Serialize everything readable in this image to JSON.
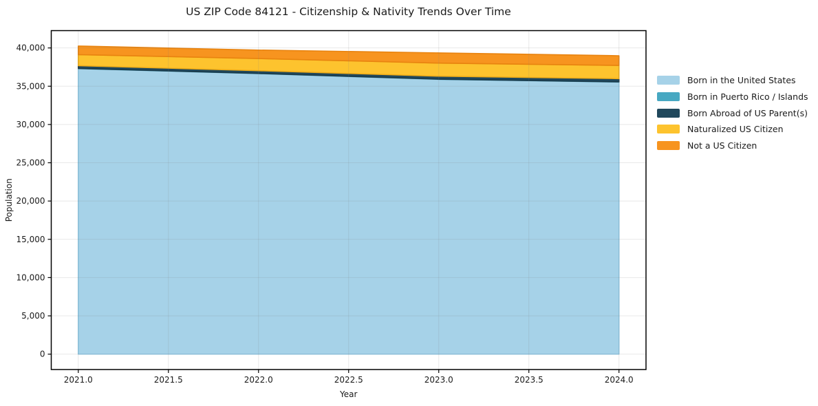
{
  "title": "US ZIP Code 84121 - Citizenship & Nativity Trends Over Time",
  "chart_data": {
    "type": "area",
    "stacked": true,
    "title": "US ZIP Code 84121 - Citizenship & Nativity Trends Over Time",
    "xlabel": "Year",
    "ylabel": "Population",
    "x": [
      2021,
      2022,
      2023,
      2024
    ],
    "series": [
      {
        "name": "Born in the United States",
        "color": "#a6d2e8",
        "edge_color": "#8ec8e4",
        "values": [
          37300,
          36650,
          35900,
          35550
        ]
      },
      {
        "name": "Born in Puerto Rico / Islands",
        "color": "#47a8c2",
        "edge_color": "#3d93ab",
        "values": [
          20,
          20,
          20,
          20
        ]
      },
      {
        "name": "Born Abroad of US Parent(s)",
        "color": "#20485c",
        "edge_color": "#1a3a4a",
        "values": [
          360,
          360,
          390,
          420
        ]
      },
      {
        "name": "Naturalized US Citizen",
        "color": "#fdc32e",
        "edge_color": "#f0ad18",
        "values": [
          1440,
          1590,
          1710,
          1730
        ]
      },
      {
        "name": "Not a US Citizen",
        "color": "#f7941f",
        "edge_color": "#e8830f",
        "values": [
          1130,
          1100,
          1330,
          1260
        ]
      }
    ],
    "totals": [
      40250,
      39720,
      39350,
      38980
    ],
    "xlim": [
      2020.85,
      2024.15
    ],
    "ylim": [
      -2012,
      42262
    ],
    "xticks": [
      2021.0,
      2021.5,
      2022.0,
      2022.5,
      2023.0,
      2023.5,
      2024.0
    ],
    "xtick_labels": [
      "2021.0",
      "2021.5",
      "2022.0",
      "2022.5",
      "2023.0",
      "2023.5",
      "2024.0"
    ],
    "yticks": [
      0,
      5000,
      10000,
      15000,
      20000,
      25000,
      30000,
      35000,
      40000
    ],
    "ytick_labels": [
      "0",
      "5,000",
      "10,000",
      "15,000",
      "20,000",
      "25,000",
      "30,000",
      "35,000",
      "40,000"
    ],
    "grid": true,
    "legend_position": "right of plot, no frame"
  }
}
